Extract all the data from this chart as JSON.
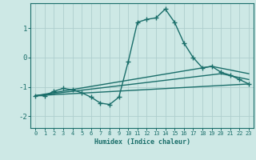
{
  "xlabel": "Humidex (Indice chaleur)",
  "background_color": "#cde8e5",
  "line_color": "#1a6e6a",
  "grid_color": "#aecece",
  "xlim": [
    -0.5,
    23.5
  ],
  "ylim": [
    -2.4,
    1.85
  ],
  "yticks": [
    -2,
    -1,
    0,
    1
  ],
  "xticks": [
    0,
    1,
    2,
    3,
    4,
    5,
    6,
    7,
    8,
    9,
    10,
    11,
    12,
    13,
    14,
    15,
    16,
    17,
    18,
    19,
    20,
    21,
    22,
    23
  ],
  "line1_x": [
    0,
    1,
    2,
    3,
    4,
    5,
    6,
    7,
    8,
    9,
    10,
    11,
    12,
    13,
    14,
    15,
    16,
    17,
    18,
    19,
    20,
    21,
    22,
    23
  ],
  "line1_y": [
    -1.3,
    -1.3,
    -1.15,
    -1.05,
    -1.1,
    -1.2,
    -1.35,
    -1.55,
    -1.6,
    -1.35,
    -0.15,
    1.2,
    1.3,
    1.35,
    1.65,
    1.2,
    0.5,
    0.0,
    -0.35,
    -0.3,
    -0.5,
    -0.6,
    -0.75,
    -0.9
  ],
  "line2_x": [
    0,
    19,
    23
  ],
  "line2_y": [
    -1.3,
    -0.3,
    -0.55
  ],
  "line3_x": [
    0,
    20,
    23
  ],
  "line3_y": [
    -1.3,
    -0.55,
    -0.75
  ],
  "line4_x": [
    0,
    23
  ],
  "line4_y": [
    -1.3,
    -0.9
  ],
  "marker": "+",
  "markersize": 4.0,
  "linewidth": 1.0
}
